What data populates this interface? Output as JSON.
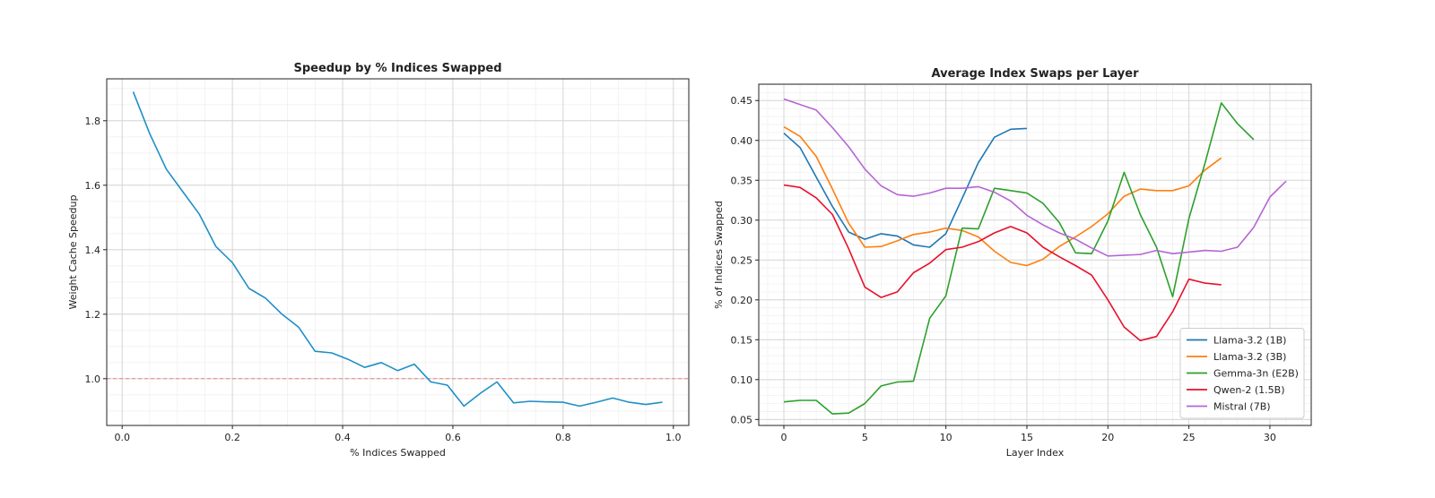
{
  "chart_data": [
    {
      "type": "line",
      "title": "Speedup by % Indices Swapped",
      "xlabel": "% Indices Swapped",
      "ylabel": "Weight Cache Speedup",
      "xlim": [
        -0.028,
        1.028
      ],
      "ylim": [
        0.855,
        1.93
      ],
      "xticks": [
        0.0,
        0.2,
        0.4,
        0.6,
        0.8,
        1.0
      ],
      "yticks": [
        1.0,
        1.2,
        1.4,
        1.6,
        1.8
      ],
      "grid": true,
      "reference_line": {
        "y": 1.0,
        "color": "#f08080",
        "style": "dashed"
      },
      "series": [
        {
          "color": "#1f8fc7",
          "x": [
            0.02,
            0.05,
            0.08,
            0.11,
            0.14,
            0.17,
            0.2,
            0.23,
            0.26,
            0.29,
            0.32,
            0.35,
            0.38,
            0.41,
            0.44,
            0.47,
            0.5,
            0.53,
            0.56,
            0.59,
            0.62,
            0.65,
            0.68,
            0.71,
            0.74,
            0.77,
            0.8,
            0.83,
            0.86,
            0.89,
            0.92,
            0.95,
            0.98
          ],
          "values": [
            1.89,
            1.76,
            1.65,
            1.58,
            1.51,
            1.41,
            1.36,
            1.28,
            1.25,
            1.2,
            1.16,
            1.085,
            1.08,
            1.06,
            1.035,
            1.05,
            1.025,
            1.045,
            0.99,
            0.98,
            0.915,
            0.955,
            0.99,
            0.925,
            0.93,
            0.928,
            0.927,
            0.915,
            0.927,
            0.94,
            0.927,
            0.92,
            0.927
          ]
        }
      ]
    },
    {
      "type": "line",
      "title": "Average Index Swaps per Layer",
      "xlabel": "Layer Index",
      "ylabel": "% of Indices Swapped",
      "xlim": [
        -1.55,
        32.55
      ],
      "ylim": [
        0.0425,
        0.4705
      ],
      "xticks": [
        0,
        5,
        10,
        15,
        20,
        25,
        30
      ],
      "yticks": [
        0.05,
        0.1,
        0.15,
        0.2,
        0.25,
        0.3,
        0.35,
        0.4,
        0.45
      ],
      "grid": true,
      "legend_position": "lower-right",
      "series": [
        {
          "name": "Llama-3.2 (1B)",
          "color": "#1f77b4",
          "x": [
            0,
            1,
            2,
            3,
            4,
            5,
            6,
            7,
            8,
            9,
            10,
            11,
            12,
            13,
            14,
            15
          ],
          "values": [
            0.409,
            0.391,
            0.354,
            0.317,
            0.285,
            0.276,
            0.283,
            0.28,
            0.269,
            0.266,
            0.283,
            0.327,
            0.372,
            0.404,
            0.414,
            0.415
          ]
        },
        {
          "name": "Llama-3.2 (3B)",
          "color": "#ff7f0e",
          "x": [
            0,
            1,
            2,
            3,
            4,
            5,
            6,
            7,
            8,
            9,
            10,
            11,
            12,
            13,
            14,
            15,
            16,
            17,
            18,
            19,
            20,
            21,
            22,
            23,
            24,
            25,
            26,
            27
          ],
          "values": [
            0.417,
            0.405,
            0.38,
            0.339,
            0.296,
            0.266,
            0.267,
            0.274,
            0.282,
            0.285,
            0.29,
            0.287,
            0.279,
            0.261,
            0.247,
            0.243,
            0.251,
            0.267,
            0.279,
            0.292,
            0.308,
            0.33,
            0.339,
            0.337,
            0.337,
            0.343,
            0.363,
            0.378
          ]
        },
        {
          "name": "Gemma-3n (E2B)",
          "color": "#2ca02c",
          "x": [
            0,
            1,
            2,
            3,
            4,
            5,
            6,
            7,
            8,
            9,
            10,
            11,
            12,
            13,
            14,
            15,
            16,
            17,
            18,
            19,
            20,
            21,
            22,
            23,
            24,
            25,
            26,
            27,
            28,
            29
          ],
          "values": [
            0.072,
            0.074,
            0.074,
            0.057,
            0.058,
            0.07,
            0.092,
            0.097,
            0.098,
            0.177,
            0.205,
            0.29,
            0.289,
            0.34,
            0.337,
            0.334,
            0.321,
            0.297,
            0.259,
            0.258,
            0.299,
            0.36,
            0.307,
            0.266,
            0.204,
            0.302,
            0.372,
            0.447,
            0.421,
            0.401
          ]
        },
        {
          "name": "Qwen-2 (1.5B)",
          "color": "#e8102c",
          "x": [
            0,
            1,
            2,
            3,
            4,
            5,
            6,
            7,
            8,
            9,
            10,
            11,
            12,
            13,
            14,
            15,
            16,
            17,
            18,
            19,
            20,
            21,
            22,
            23,
            24,
            25,
            26,
            27
          ],
          "values": [
            0.344,
            0.341,
            0.328,
            0.307,
            0.264,
            0.216,
            0.203,
            0.21,
            0.234,
            0.246,
            0.263,
            0.266,
            0.273,
            0.284,
            0.292,
            0.284,
            0.266,
            0.254,
            0.243,
            0.231,
            0.2,
            0.166,
            0.149,
            0.154,
            0.185,
            0.226,
            0.221,
            0.219
          ]
        },
        {
          "name": "Mistral (7B)",
          "color": "#b566d4",
          "x": [
            0,
            1,
            2,
            3,
            4,
            5,
            6,
            7,
            8,
            9,
            10,
            11,
            12,
            13,
            14,
            15,
            16,
            17,
            18,
            19,
            20,
            21,
            22,
            23,
            24,
            25,
            26,
            27,
            28,
            29,
            30,
            31
          ],
          "values": [
            0.452,
            0.445,
            0.438,
            0.416,
            0.392,
            0.364,
            0.343,
            0.332,
            0.33,
            0.334,
            0.34,
            0.34,
            0.342,
            0.335,
            0.324,
            0.306,
            0.294,
            0.284,
            0.276,
            0.265,
            0.255,
            0.256,
            0.257,
            0.262,
            0.258,
            0.26,
            0.262,
            0.261,
            0.266,
            0.291,
            0.329,
            0.349
          ]
        }
      ]
    }
  ]
}
